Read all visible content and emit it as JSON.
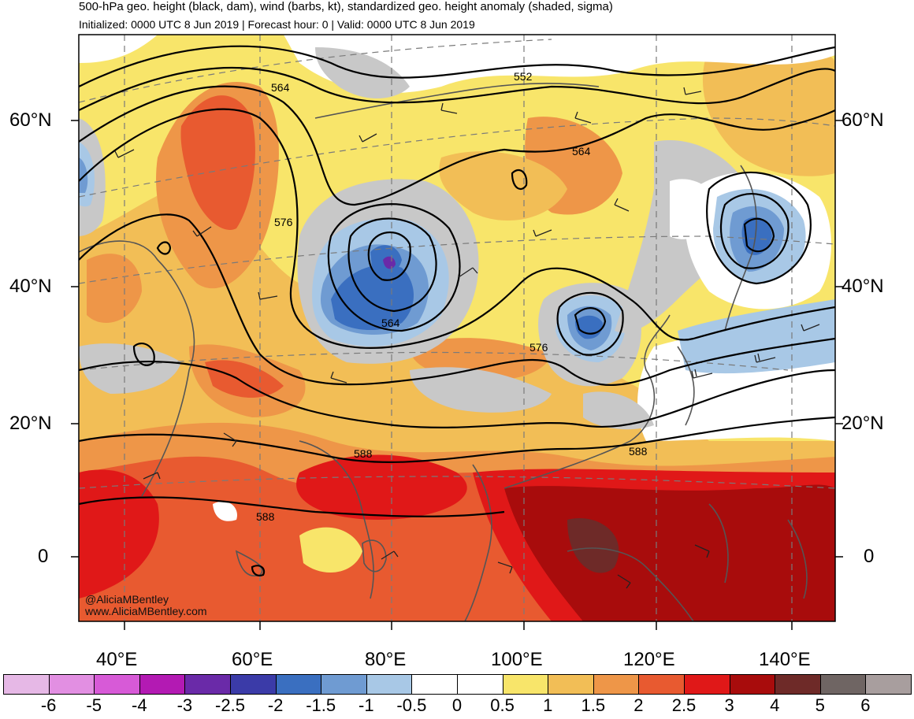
{
  "header": {
    "title": "500-hPa geo. height (black, dam), wind (barbs, kt), standardized geo. height anomaly (shaded, sigma)",
    "subtitle": "Initialized: 0000 UTC 8 Jun 2019 | Forecast hour: 0 | Valid: 0000 UTC 8 Jun 2019"
  },
  "map": {
    "lat_labels": [
      "60°N",
      "40°N",
      "20°N",
      "0"
    ],
    "lon_labels": [
      "40°E",
      "60°E",
      "80°E",
      "100°E",
      "120°E",
      "140°E"
    ],
    "contour_labels": [
      "564",
      "552",
      "564",
      "576",
      "564",
      "576",
      "588",
      "588",
      "588"
    ],
    "credit_handle": "@AliciaMBentley",
    "credit_url": "www.AliciaMBentley.com",
    "colors": {
      "ocean_white": "#ffffff",
      "coastline": "#555555",
      "contour": "#000000"
    }
  },
  "colorbar": {
    "ticks": [
      "-6",
      "-5",
      "-4",
      "-3",
      "-2.5",
      "-2",
      "-1.5",
      "-1",
      "-0.5",
      "0",
      "0.5",
      "1",
      "1.5",
      "2",
      "2.5",
      "3",
      "4",
      "5",
      "6"
    ],
    "colors": [
      "#e6b8e6",
      "#e28fe2",
      "#d75ad7",
      "#b31ab3",
      "#6a2aa8",
      "#3b3ba8",
      "#3a6fc0",
      "#6f9bd2",
      "#a8c8e6",
      "#ffffff",
      "#ffffff",
      "#f8e56a",
      "#f2be56",
      "#ee9648",
      "#e85a30",
      "#e01818",
      "#a80c0c",
      "#6e2a28",
      "#6f6563",
      "#a89e9e"
    ]
  }
}
